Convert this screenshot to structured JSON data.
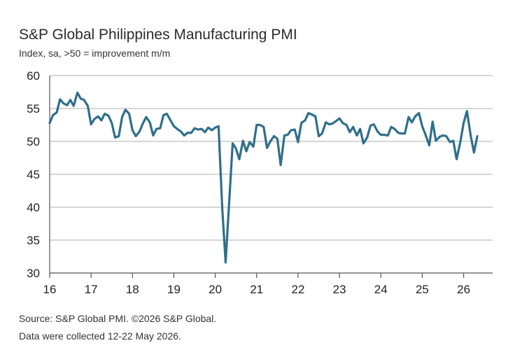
{
  "header": {
    "title": "S&P Global Philippines Manufacturing PMI",
    "subtitle": "Index, sa, >50 = improvement m/m"
  },
  "footer": {
    "source": "Source: S&P Global PMI. ©2026 S&P Global.",
    "collected": "Data were collected 12-22 May 2026."
  },
  "colors": {
    "line": "#2f6f8a",
    "grid": "#c8c8c8",
    "axis": "#555555"
  },
  "chart_data": {
    "type": "line",
    "title": "S&P Global Philippines Manufacturing PMI",
    "ylabel": "",
    "xlabel": "",
    "ylim": [
      30,
      60
    ],
    "xlim": [
      2016,
      2026.7
    ],
    "y_ticks": [
      30,
      35,
      40,
      45,
      50,
      55,
      60
    ],
    "x_ticks": [
      2016,
      2017,
      2018,
      2019,
      2020,
      2021,
      2022,
      2023,
      2024,
      2025,
      2026
    ],
    "x_tick_labels": [
      "16",
      "17",
      "18",
      "19",
      "20",
      "21",
      "22",
      "23",
      "24",
      "25",
      "26"
    ],
    "grid": "horizontal",
    "series": [
      {
        "x": [
          2016.0,
          2016.08,
          2016.17,
          2016.25,
          2016.33,
          2016.42,
          2016.5,
          2016.58,
          2016.67,
          2016.75,
          2016.83,
          2016.92,
          2017.0,
          2017.08,
          2017.17,
          2017.25,
          2017.33,
          2017.42,
          2017.5,
          2017.58,
          2017.67,
          2017.75,
          2017.83,
          2017.92,
          2018.0,
          2018.08,
          2018.17,
          2018.25,
          2018.33,
          2018.42,
          2018.5,
          2018.58,
          2018.67,
          2018.75,
          2018.83,
          2018.92,
          2019.0,
          2019.08,
          2019.17,
          2019.25,
          2019.33,
          2019.42,
          2019.5,
          2019.58,
          2019.67,
          2019.75,
          2019.83,
          2019.92,
          2020.0,
          2020.08,
          2020.17,
          2020.25,
          2020.33,
          2020.42,
          2020.5,
          2020.58,
          2020.67,
          2020.75,
          2020.83,
          2020.92,
          2021.0,
          2021.08,
          2021.17,
          2021.25,
          2021.33,
          2021.42,
          2021.5,
          2021.58,
          2021.67,
          2021.75,
          2021.83,
          2021.92,
          2022.0,
          2022.08,
          2022.17,
          2022.25,
          2022.33,
          2022.42,
          2022.5,
          2022.58,
          2022.67,
          2022.75,
          2022.83,
          2022.92,
          2023.0,
          2023.08,
          2023.17,
          2023.25,
          2023.33,
          2023.42,
          2023.5,
          2023.58,
          2023.67,
          2023.75,
          2023.83,
          2023.92,
          2024.0,
          2024.08,
          2024.17,
          2024.25,
          2024.33,
          2024.42,
          2024.5,
          2024.58,
          2024.67,
          2024.75,
          2024.83,
          2024.92,
          2025.0,
          2025.08,
          2025.17,
          2025.25,
          2025.33,
          2025.42,
          2025.5,
          2025.58,
          2025.67,
          2025.75,
          2025.83,
          2025.92,
          2026.0,
          2026.08,
          2026.17,
          2026.25,
          2026.33
        ],
        "values": [
          52.8,
          54.0,
          54.4,
          56.4,
          55.8,
          55.5,
          56.3,
          55.4,
          57.4,
          56.5,
          56.3,
          55.4,
          52.6,
          53.4,
          53.8,
          53.2,
          54.2,
          53.9,
          52.8,
          50.6,
          50.8,
          53.7,
          54.8,
          54.2,
          51.7,
          50.8,
          51.5,
          52.7,
          53.7,
          52.9,
          50.9,
          51.9,
          52.0,
          54.0,
          54.2,
          53.2,
          52.3,
          51.9,
          51.5,
          50.9,
          51.3,
          51.3,
          52.0,
          51.8,
          51.9,
          51.4,
          52.1,
          51.7,
          52.1,
          52.3,
          39.7,
          31.6,
          40.1,
          49.7,
          48.9,
          47.3,
          50.1,
          48.5,
          49.9,
          49.2,
          52.5,
          52.5,
          52.2,
          49.0,
          50.0,
          50.8,
          50.4,
          46.4,
          50.9,
          51.0,
          51.7,
          51.8,
          49.9,
          52.8,
          53.2,
          54.3,
          54.1,
          53.8,
          50.8,
          51.2,
          52.9,
          52.6,
          52.7,
          53.1,
          53.5,
          52.8,
          52.5,
          51.4,
          52.2,
          50.9,
          51.9,
          49.7,
          50.6,
          52.4,
          52.6,
          51.5,
          51.0,
          51.0,
          50.9,
          52.2,
          51.9,
          51.3,
          51.2,
          51.2,
          53.7,
          52.9,
          53.8,
          54.3,
          52.3,
          51.0,
          49.4,
          53.0,
          50.1,
          50.7,
          50.9,
          50.8,
          49.9,
          50.1,
          47.3,
          49.9,
          52.8,
          54.6,
          50.9,
          48.3,
          50.8
        ]
      }
    ]
  }
}
